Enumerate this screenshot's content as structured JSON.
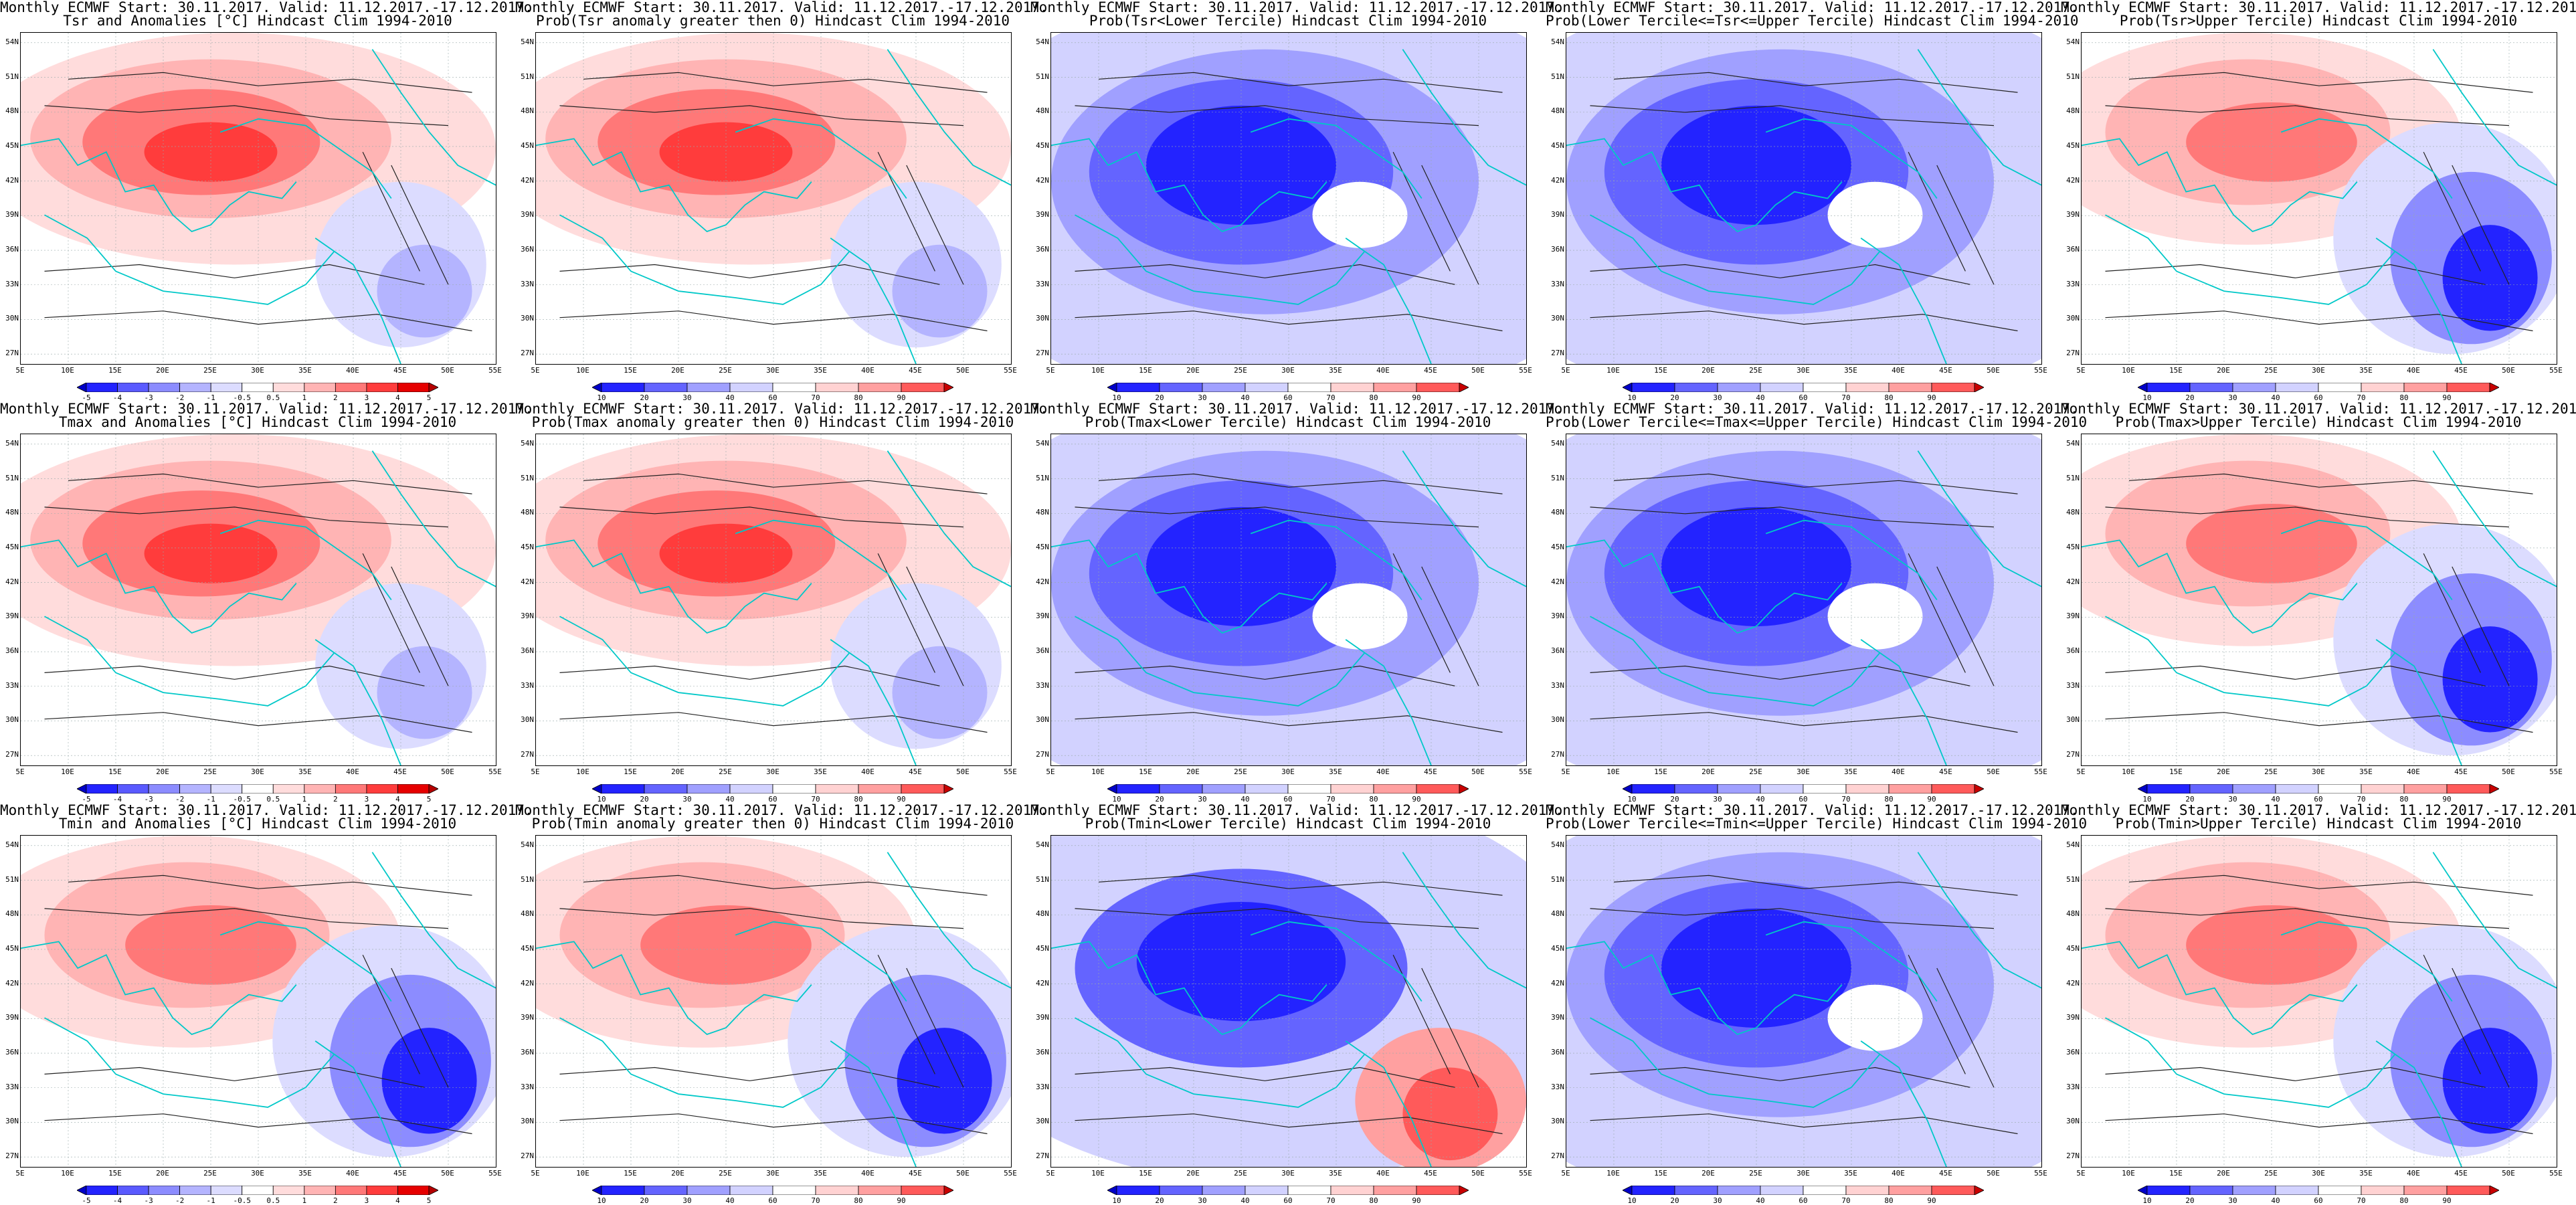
{
  "header": {
    "line1": "Monthly ECMWF Start: 30.11.2017. Valid: 11.12.2017.-17.12.2017."
  },
  "lat_labels": [
    "54N",
    "51N",
    "48N",
    "45N",
    "42N",
    "39N",
    "36N",
    "33N",
    "30N",
    "27N"
  ],
  "lon_labels": [
    "5E",
    "10E",
    "15E",
    "20E",
    "25E",
    "30E",
    "35E",
    "40E",
    "45E",
    "50E",
    "55E"
  ],
  "colorbars": {
    "anomaly": {
      "labels": [
        "-5",
        "-4",
        "-3",
        "-2",
        "-1",
        "-0.5",
        "0.5",
        "1",
        "2",
        "3",
        "4",
        "5"
      ],
      "colors": [
        "#0000c8",
        "#2323ff",
        "#5a5aff",
        "#8c8cff",
        "#b4b4ff",
        "#dcdcff",
        "#ffffff",
        "#ffdcdc",
        "#ffb4b4",
        "#ff7878",
        "#ff3c3c",
        "#e60000",
        "#b40000"
      ]
    },
    "probability": {
      "labels": [
        "10",
        "20",
        "30",
        "40",
        "60",
        "70",
        "80",
        "90"
      ],
      "colors": [
        "#0000c8",
        "#2323ff",
        "#6464ff",
        "#a0a0ff",
        "#d2d2ff",
        "#ffffff",
        "#ffd2d2",
        "#ffa0a0",
        "#ff5a5a",
        "#c80000"
      ]
    }
  },
  "rows": [
    {
      "titles": [
        "Tsr and Anomalies [°C] Hindcast Clim 1994-2010",
        "Prob(Tsr anomaly greater then 0) Hindcast Clim 1994-2010",
        "Prob(Tsr<Lower Tercile) Hindcast Clim 1994-2010",
        "Prob(Lower Tercile<=Tsr<=Upper Tercile) Hindcast Clim 1994-2010",
        "Prob(Tsr>Upper Tercile) Hindcast Clim 1994-2010"
      ],
      "bar_types": [
        "anomaly",
        "probability",
        "probability",
        "probability",
        "probability"
      ],
      "field_types": [
        "warm",
        "warm",
        "cold",
        "cold",
        "warm-east-cold"
      ]
    },
    {
      "titles": [
        "Tmax and Anomalies [°C] Hindcast Clim 1994-2010",
        "Prob(Tmax anomaly greater then 0) Hindcast Clim 1994-2010",
        "Prob(Tmax<Lower Tercile) Hindcast Clim 1994-2010",
        "Prob(Lower Tercile<=Tmax<=Upper Tercile) Hindcast Clim 1994-2010",
        "Prob(Tmax>Upper Tercile) Hindcast Clim 1994-2010"
      ],
      "bar_types": [
        "anomaly",
        "probability",
        "probability",
        "probability",
        "probability"
      ],
      "field_types": [
        "warm",
        "warm",
        "cold",
        "cold",
        "warm-east-cold"
      ]
    },
    {
      "titles": [
        "Tmin and Anomalies [°C] Hindcast Clim 1994-2010",
        "Prob(Tmin anomaly greater then 0) Hindcast Clim 1994-2010",
        "Prob(Tmin<Lower Tercile) Hindcast Clim 1994-2010",
        "Prob(Lower Tercile<=Tmin<=Upper Tercile) Hindcast Clim 1994-2010",
        "Prob(Tmin>Upper Tercile) Hindcast Clim 1994-2010"
      ],
      "bar_types": [
        "anomaly",
        "probability",
        "probability",
        "probability",
        "probability"
      ],
      "field_types": [
        "warm-east-cold",
        "warm-east-cold",
        "cold-southeast-warm",
        "cold",
        "warm-east-cold"
      ]
    }
  ]
}
